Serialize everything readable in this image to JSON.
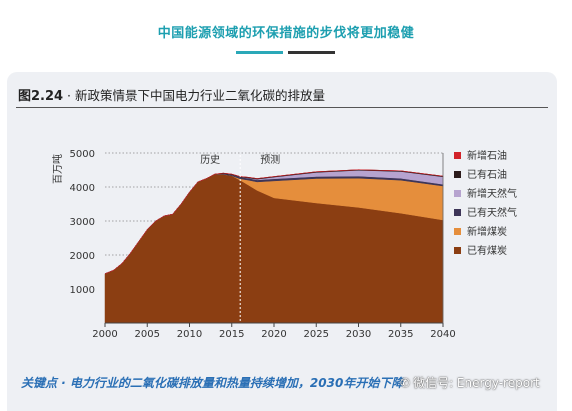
{
  "header": {
    "title": "中国能源领域的环保措施的步伐将更加稳健"
  },
  "figure": {
    "number": "图2.24",
    "title": " · 新政策情景下中国电力行业二氧化碳的排放量",
    "caption": "关键点 · 电力行业的二氧化碳排放量和热量持续增加，2030年开始下降",
    "watermark": "微信号: Energy-report"
  },
  "chart_data": {
    "type": "area",
    "title": "图2.24 · 新政策情景下中国电力行业二氧化碳的排放量",
    "ylabel": "百万吨",
    "xlabel": "",
    "xlim": [
      2000,
      2040
    ],
    "ylim": [
      0,
      5000
    ],
    "xticks": [
      2000,
      2005,
      2010,
      2015,
      2020,
      2025,
      2030,
      2035,
      2040
    ],
    "yticks": [
      1000,
      2000,
      3000,
      4000,
      5000
    ],
    "annotations": [
      "历史",
      "预测"
    ],
    "divider_x": 2016,
    "legend_position": "right",
    "x": [
      2000,
      2001,
      2002,
      2003,
      2004,
      2005,
      2006,
      2007,
      2008,
      2009,
      2010,
      2011,
      2012,
      2013,
      2014,
      2015,
      2016,
      2017,
      2018,
      2020,
      2025,
      2030,
      2035,
      2040
    ],
    "series": [
      {
        "name": "已有煤炭",
        "color": "#8b3e12",
        "values": [
          1450,
          1550,
          1750,
          2050,
          2400,
          2750,
          3000,
          3150,
          3200,
          3500,
          3850,
          4150,
          4250,
          4380,
          4370,
          4330,
          4200,
          4050,
          3900,
          3680,
          3530,
          3400,
          3230,
          3030
        ]
      },
      {
        "name": "新增煤炭",
        "color": "#e58e3c",
        "values": [
          0,
          0,
          0,
          0,
          0,
          0,
          0,
          0,
          0,
          0,
          0,
          0,
          0,
          0,
          0,
          0,
          40,
          150,
          250,
          500,
          720,
          860,
          970,
          1000
        ]
      },
      {
        "name": "已有天然气",
        "color": "#3d3558",
        "values": [
          0,
          0,
          0,
          0,
          0,
          0,
          0,
          0,
          0,
          0,
          0,
          0,
          0,
          0,
          20,
          30,
          50,
          55,
          60,
          60,
          60,
          60,
          55,
          50
        ]
      },
      {
        "name": "新增天然气",
        "color": "#b6a3cf",
        "values": [
          0,
          0,
          0,
          0,
          0,
          0,
          0,
          0,
          0,
          0,
          0,
          0,
          0,
          0,
          0,
          0,
          0,
          10,
          20,
          50,
          120,
          170,
          200,
          220
        ]
      },
      {
        "name": "已有石油",
        "color": "#2b1b1b",
        "values": [
          0,
          0,
          0,
          0,
          0,
          0,
          0,
          0,
          0,
          0,
          0,
          0,
          0,
          0,
          20,
          20,
          20,
          20,
          20,
          20,
          20,
          20,
          20,
          20
        ]
      },
      {
        "name": "新增石油",
        "color": "#d2232a",
        "values": [
          0,
          0,
          0,
          0,
          0,
          0,
          0,
          0,
          0,
          0,
          0,
          0,
          0,
          0,
          0,
          0,
          0,
          0,
          0,
          0,
          0,
          0,
          0,
          0
        ]
      }
    ]
  }
}
